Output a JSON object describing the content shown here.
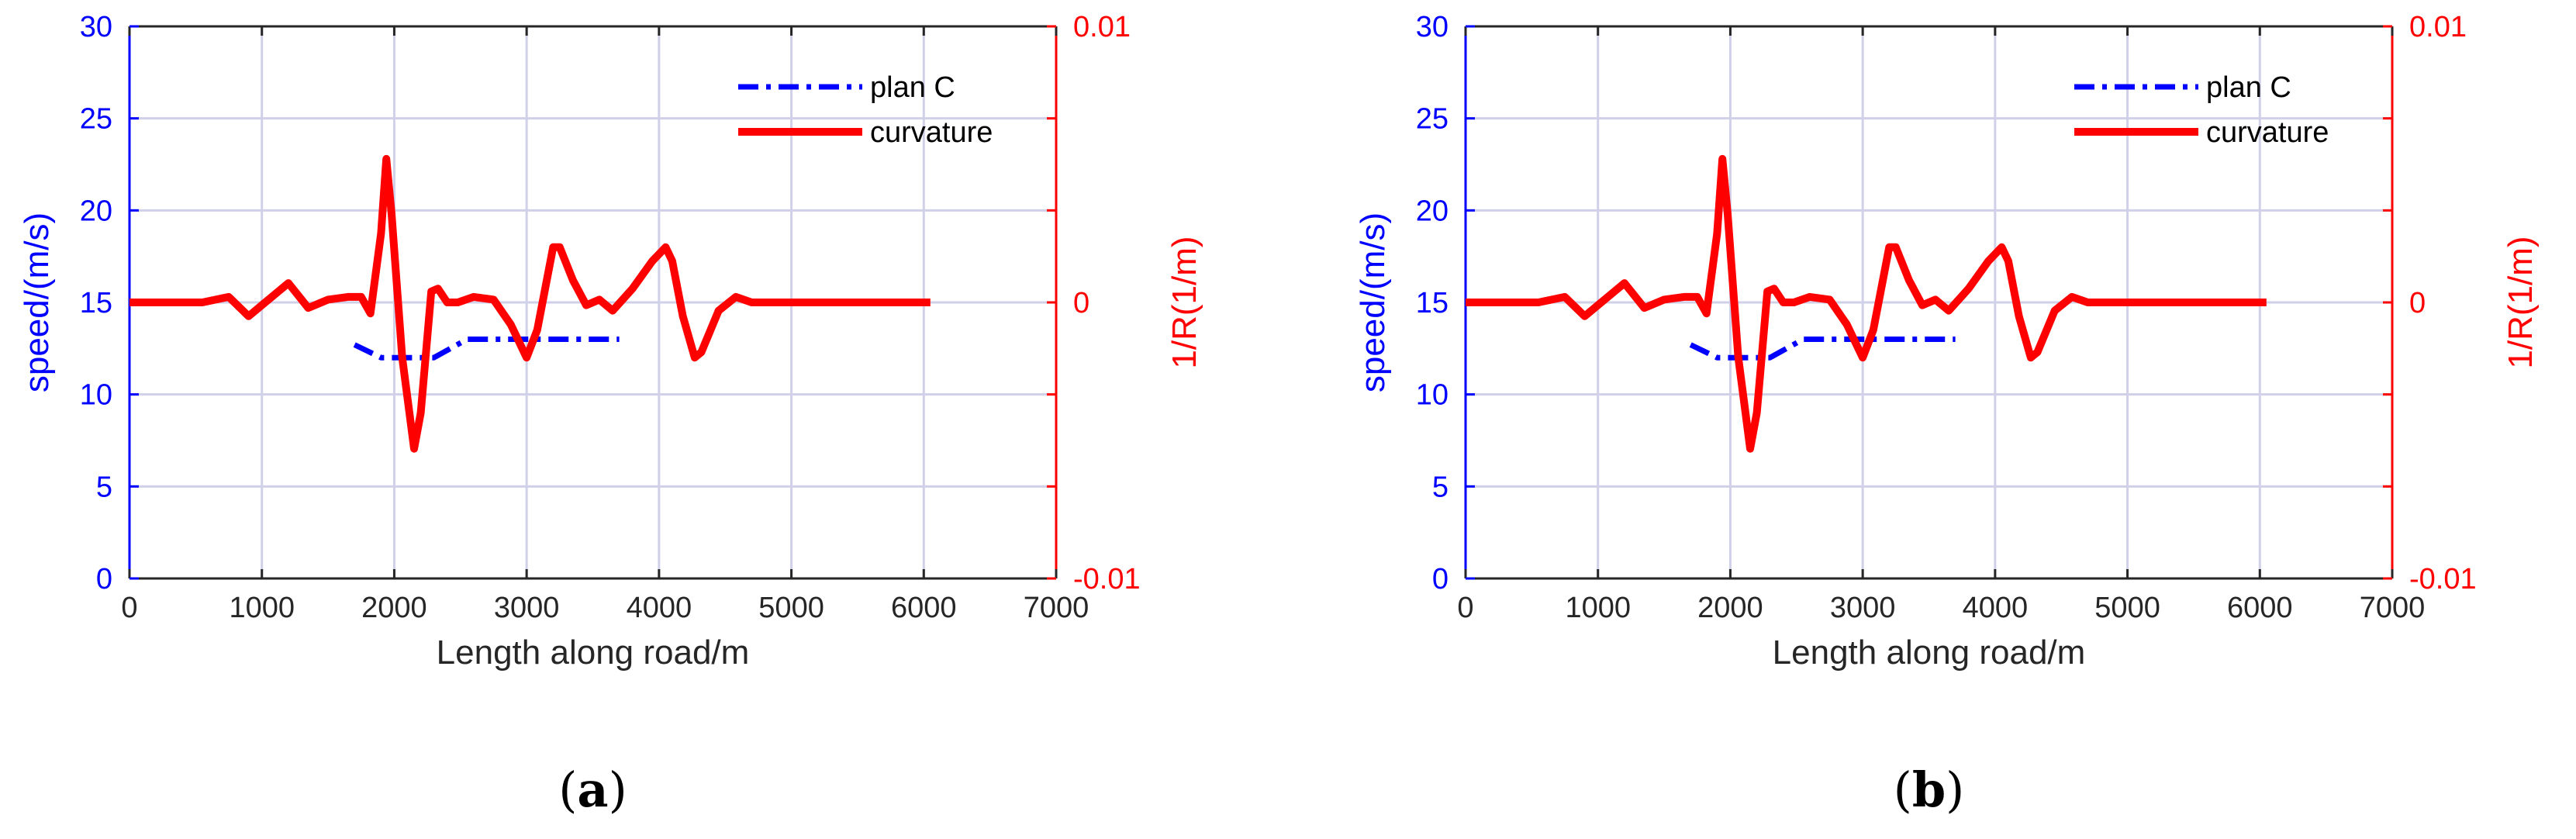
{
  "chart_data": [
    {
      "panel_label": "a",
      "type": "line",
      "xlabel": "Length along road/m",
      "ylabel_left": "speed/(m/s)",
      "ylabel_right": "1/R(1/m)",
      "xlim": [
        0,
        7000
      ],
      "ylim_left": [
        0,
        30
      ],
      "ylim_right": [
        -0.01,
        0.01
      ],
      "x_ticks": [
        "0",
        "1000",
        "2000",
        "3000",
        "4000",
        "5000",
        "6000",
        "7000"
      ],
      "y_ticks_left": [
        "0",
        "5",
        "10",
        "15",
        "20",
        "25",
        "30"
      ],
      "y_ticks_right": [
        "-0.01",
        "0",
        "0.01"
      ],
      "grid": true,
      "legend_position": "top-right",
      "colors": {
        "plan": "#0000ff",
        "curvature": "#ff0000",
        "left_axis": "#0000ff",
        "right_axis": "#ff0000",
        "grid": "#d0d0e8"
      },
      "series": [
        {
          "name": "plan C",
          "axis": "left",
          "style": "dash-dot",
          "x": [
            1700,
            1900,
            2000,
            2300,
            2550,
            2700,
            3000,
            3300,
            3700
          ],
          "y": [
            12.7,
            12.0,
            12.0,
            12.0,
            13.0,
            13.0,
            13.0,
            13.0,
            13.0
          ]
        },
        {
          "name": "curvature",
          "axis": "right",
          "style": "solid",
          "x": [
            0,
            200,
            400,
            550,
            750,
            900,
            1050,
            1200,
            1350,
            1500,
            1650,
            1750,
            1820,
            1900,
            1940,
            1980,
            2060,
            2150,
            2200,
            2280,
            2330,
            2400,
            2480,
            2600,
            2750,
            2880,
            3000,
            3080,
            3200,
            3250,
            3350,
            3450,
            3550,
            3650,
            3800,
            3950,
            4050,
            4100,
            4180,
            4270,
            4320,
            4450,
            4580,
            4700,
            4850,
            5000,
            5500,
            6050
          ],
          "y": [
            0,
            0,
            0,
            0,
            0.0002,
            -0.0005,
            0.0001,
            0.0007,
            -0.0002,
            0.0001,
            0.0002,
            0.0002,
            -0.0004,
            0.0025,
            0.0052,
            0.0032,
            -0.002,
            -0.0053,
            -0.004,
            0.0004,
            0.0005,
            0,
            0,
            0.0002,
            0.0001,
            -0.0008,
            -0.002,
            -0.001,
            0.002,
            0.002,
            0.0008,
            -0.0001,
            0.0001,
            -0.0003,
            0.0005,
            0.0015,
            0.002,
            0.0015,
            -0.0005,
            -0.002,
            -0.0018,
            -0.0003,
            0.0002,
            0,
            0,
            0,
            0,
            0
          ]
        }
      ]
    },
    {
      "panel_label": "b",
      "type": "line",
      "xlabel": "Length along road/m",
      "ylabel_left": "speed/(m/s)",
      "ylabel_right": "1/R(1/m)",
      "xlim": [
        0,
        7000
      ],
      "ylim_left": [
        0,
        30
      ],
      "ylim_right": [
        -0.01,
        0.01
      ],
      "x_ticks": [
        "0",
        "1000",
        "2000",
        "3000",
        "4000",
        "5000",
        "6000",
        "7000"
      ],
      "y_ticks_left": [
        "0",
        "5",
        "10",
        "15",
        "20",
        "25",
        "30"
      ],
      "y_ticks_right": [
        "-0.01",
        "0",
        "0.01"
      ],
      "grid": true,
      "legend_position": "top-right",
      "colors": {
        "plan": "#0000ff",
        "curvature": "#ff0000",
        "left_axis": "#0000ff",
        "right_axis": "#ff0000",
        "grid": "#d0d0e8"
      },
      "series": [
        {
          "name": "plan C",
          "axis": "left",
          "style": "dash-dot",
          "x": [
            1700,
            1900,
            2000,
            2300,
            2550,
            2700,
            3000,
            3300,
            3700
          ],
          "y": [
            12.7,
            12.0,
            12.0,
            12.0,
            13.0,
            13.0,
            13.0,
            13.0,
            13.0
          ]
        },
        {
          "name": "curvature",
          "axis": "right",
          "style": "solid",
          "x": [
            0,
            200,
            400,
            550,
            750,
            900,
            1050,
            1200,
            1350,
            1500,
            1650,
            1750,
            1820,
            1900,
            1940,
            1980,
            2060,
            2150,
            2200,
            2280,
            2330,
            2400,
            2480,
            2600,
            2750,
            2880,
            3000,
            3080,
            3200,
            3250,
            3350,
            3450,
            3550,
            3650,
            3800,
            3950,
            4050,
            4100,
            4180,
            4270,
            4320,
            4450,
            4580,
            4700,
            4850,
            5000,
            5500,
            6050
          ],
          "y": [
            0,
            0,
            0,
            0,
            0.0002,
            -0.0005,
            0.0001,
            0.0007,
            -0.0002,
            0.0001,
            0.0002,
            0.0002,
            -0.0004,
            0.0025,
            0.0052,
            0.0032,
            -0.002,
            -0.0053,
            -0.004,
            0.0004,
            0.0005,
            0,
            0,
            0.0002,
            0.0001,
            -0.0008,
            -0.002,
            -0.001,
            0.002,
            0.002,
            0.0008,
            -0.0001,
            0.0001,
            -0.0003,
            0.0005,
            0.0015,
            0.002,
            0.0015,
            -0.0005,
            -0.002,
            -0.0018,
            -0.0003,
            0.0002,
            0,
            0,
            0,
            0,
            0
          ]
        }
      ]
    }
  ]
}
